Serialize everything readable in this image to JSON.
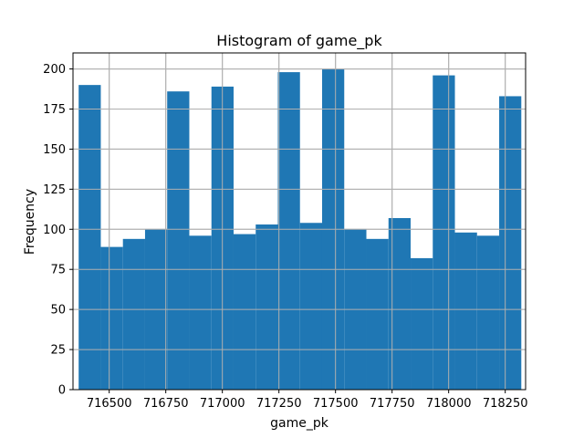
{
  "chart_data": {
    "type": "bar",
    "title": "Histogram of game_pk",
    "xlabel": "game_pk",
    "ylabel": "Frequency",
    "bin_start": 716365,
    "bin_width": 97.8,
    "values": [
      190,
      89,
      94,
      100,
      186,
      96,
      189,
      97,
      103,
      198,
      104,
      200,
      100,
      94,
      107,
      82,
      196,
      98,
      96,
      183
    ],
    "xlim": [
      716340,
      718340
    ],
    "ylim": [
      0,
      210
    ],
    "xticks": [
      716500,
      716750,
      717000,
      717250,
      717500,
      717750,
      718000,
      718250
    ],
    "yticks": [
      0,
      25,
      50,
      75,
      100,
      125,
      150,
      175,
      200
    ],
    "grid": true,
    "bar_color": "#1f77b4",
    "grid_color": "#b0b0b0"
  }
}
